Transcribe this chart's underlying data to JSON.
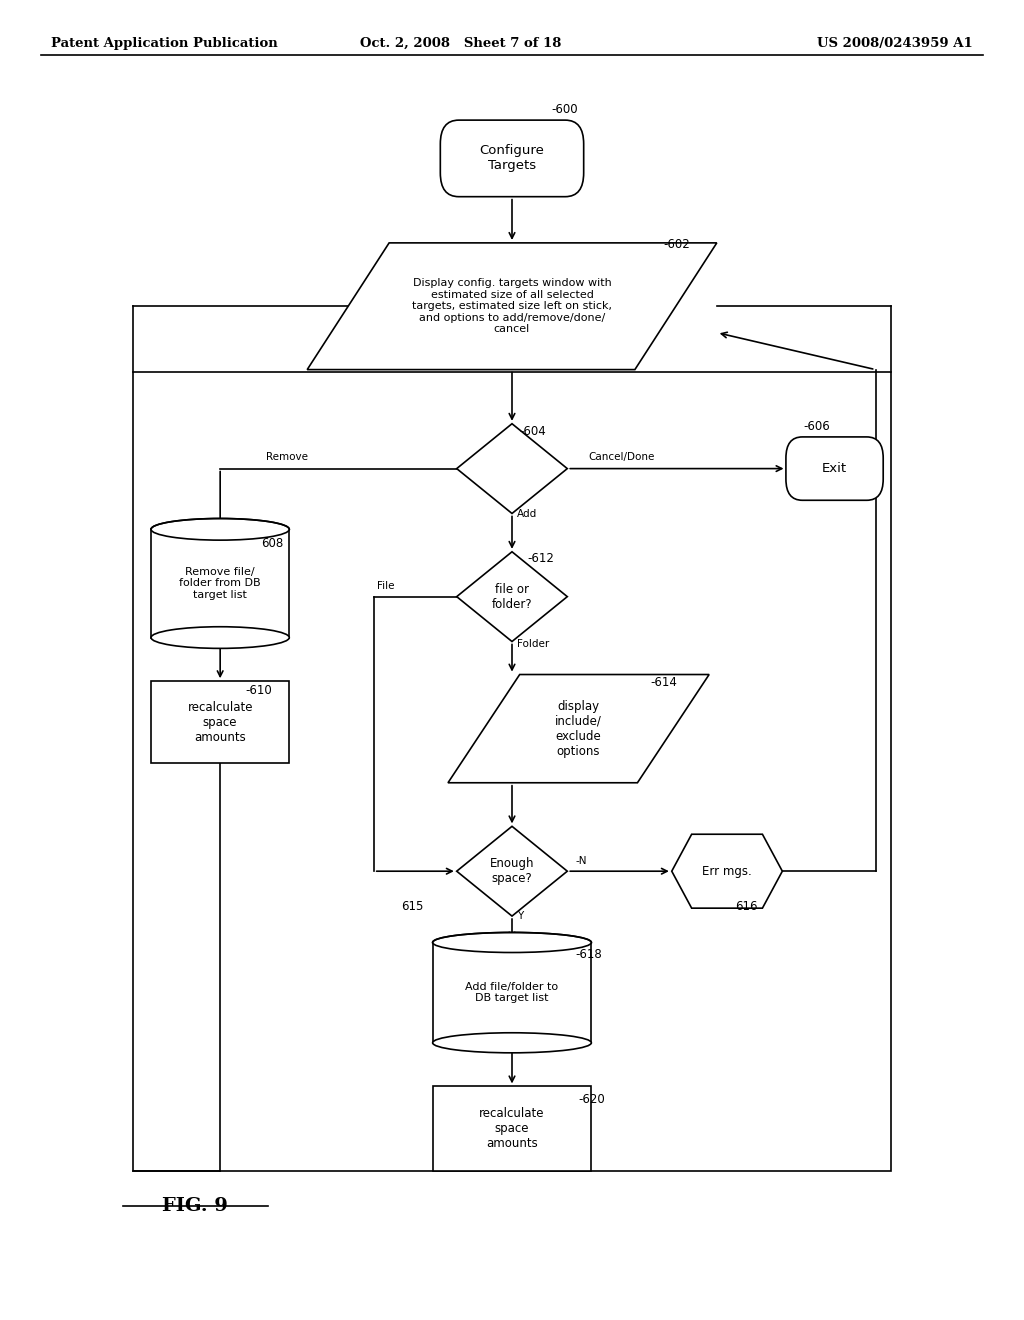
{
  "title_left": "Patent Application Publication",
  "title_center": "Oct. 2, 2008   Sheet 7 of 18",
  "title_right": "US 2008/0243959 A1",
  "fig_label": "FIG. 9",
  "bg_color": "#ffffff",
  "line_color": "#000000"
}
